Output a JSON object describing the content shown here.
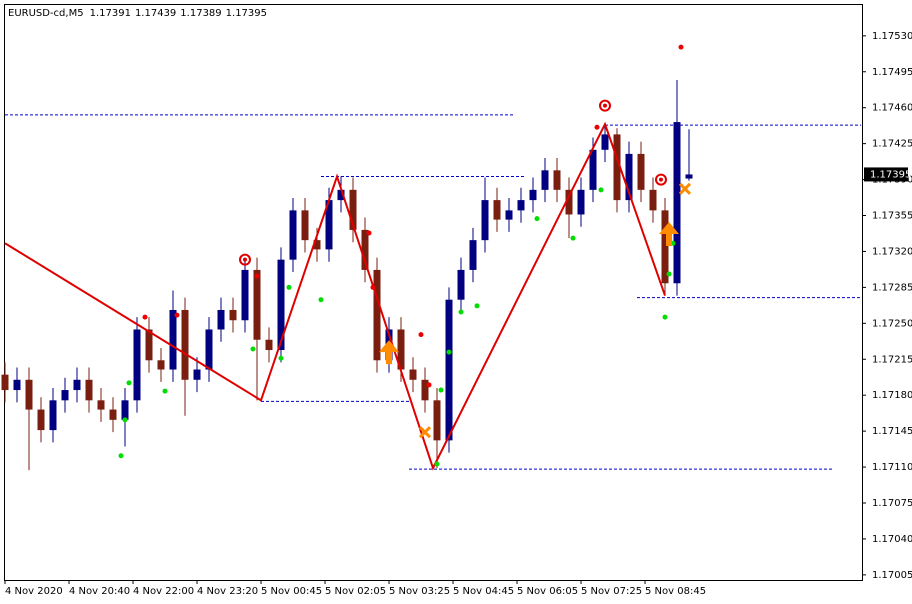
{
  "chart_data": {
    "type": "candlestick",
    "symbol": "EURUSD-cd,M5",
    "x": [
      0,
      3,
      6,
      9,
      12,
      15,
      18,
      21,
      24,
      27,
      30,
      33,
      36,
      39,
      42,
      45,
      48,
      51,
      54,
      57,
      60,
      63,
      66,
      69,
      72,
      75,
      78,
      81,
      84,
      87,
      90,
      93,
      96,
      99,
      102,
      105,
      108,
      111,
      114,
      117,
      120,
      123,
      126,
      129,
      132,
      135,
      138,
      141,
      144,
      147,
      150,
      153,
      156,
      159,
      162,
      165,
      168,
      171
    ],
    "candles": [
      [
        1.172,
        1.17212,
        1.17173,
        1.17185
      ],
      [
        1.17185,
        1.17207,
        1.17173,
        1.17195
      ],
      [
        1.17195,
        1.17207,
        1.17107,
        1.17166
      ],
      [
        1.17166,
        1.17178,
        1.17134,
        1.17146
      ],
      [
        1.17146,
        1.17187,
        1.17134,
        1.17175
      ],
      [
        1.17175,
        1.17197,
        1.17163,
        1.17185
      ],
      [
        1.17185,
        1.17207,
        1.17173,
        1.17195
      ],
      [
        1.17195,
        1.17207,
        1.17163,
        1.17175
      ],
      [
        1.17175,
        1.17187,
        1.17154,
        1.17166
      ],
      [
        1.17166,
        1.17178,
        1.17144,
        1.17156
      ],
      [
        1.17156,
        1.17187,
        1.1713,
        1.17175
      ],
      [
        1.17175,
        1.17256,
        1.17163,
        1.17244
      ],
      [
        1.17244,
        1.17256,
        1.17202,
        1.17214
      ],
      [
        1.17214,
        1.17226,
        1.17193,
        1.17205
      ],
      [
        1.17205,
        1.17282,
        1.17193,
        1.17263
      ],
      [
        1.17263,
        1.17275,
        1.1716,
        1.17195
      ],
      [
        1.17195,
        1.17217,
        1.17183,
        1.17205
      ],
      [
        1.17205,
        1.17256,
        1.17193,
        1.17244
      ],
      [
        1.17244,
        1.17275,
        1.17232,
        1.17263
      ],
      [
        1.17263,
        1.17275,
        1.17241,
        1.17253
      ],
      [
        1.17253,
        1.17314,
        1.17241,
        1.17302
      ],
      [
        1.17302,
        1.17314,
        1.17175,
        1.17234
      ],
      [
        1.17234,
        1.17246,
        1.17212,
        1.17224
      ],
      [
        1.17224,
        1.17324,
        1.17212,
        1.17312
      ],
      [
        1.17312,
        1.17372,
        1.173,
        1.1736
      ],
      [
        1.1736,
        1.17372,
        1.17319,
        1.17331
      ],
      [
        1.17331,
        1.17343,
        1.1731,
        1.17322
      ],
      [
        1.17322,
        1.17382,
        1.1731,
        1.1737
      ],
      [
        1.1737,
        1.17393,
        1.17358,
        1.1738
      ],
      [
        1.1738,
        1.17392,
        1.17329,
        1.17341
      ],
      [
        1.17341,
        1.17353,
        1.1729,
        1.17302
      ],
      [
        1.17302,
        1.17314,
        1.17202,
        1.17214
      ],
      [
        1.17214,
        1.17256,
        1.17202,
        1.17244
      ],
      [
        1.17244,
        1.17256,
        1.17193,
        1.17205
      ],
      [
        1.17205,
        1.17217,
        1.17183,
        1.17195
      ],
      [
        1.17195,
        1.17207,
        1.17163,
        1.17175
      ],
      [
        1.17175,
        1.17187,
        1.17109,
        1.17136
      ],
      [
        1.17136,
        1.17285,
        1.17124,
        1.17273
      ],
      [
        1.17273,
        1.17314,
        1.17261,
        1.17302
      ],
      [
        1.17302,
        1.17343,
        1.1729,
        1.17331
      ],
      [
        1.17331,
        1.17392,
        1.17319,
        1.1737
      ],
      [
        1.1737,
        1.17382,
        1.17339,
        1.17351
      ],
      [
        1.17351,
        1.17372,
        1.17339,
        1.1736
      ],
      [
        1.1736,
        1.17382,
        1.17348,
        1.1737
      ],
      [
        1.1737,
        1.17392,
        1.17358,
        1.1738
      ],
      [
        1.1738,
        1.17411,
        1.17368,
        1.17399
      ],
      [
        1.17399,
        1.17411,
        1.17368,
        1.1738
      ],
      [
        1.1738,
        1.17392,
        1.17333,
        1.17356
      ],
      [
        1.17356,
        1.17392,
        1.17344,
        1.1738
      ],
      [
        1.1738,
        1.17431,
        1.17368,
        1.17419
      ],
      [
        1.17419,
        1.17444,
        1.17407,
        1.17434
      ],
      [
        1.17434,
        1.1744,
        1.17358,
        1.1737
      ],
      [
        1.1737,
        1.17427,
        1.17358,
        1.17415
      ],
      [
        1.17415,
        1.17427,
        1.17368,
        1.1738
      ],
      [
        1.1738,
        1.17392,
        1.17348,
        1.1736
      ],
      [
        1.1736,
        1.17372,
        1.17277,
        1.17289
      ],
      [
        1.17289,
        1.17487,
        1.17277,
        1.17446
      ],
      [
        1.17391,
        1.17439,
        1.17389,
        1.17395
      ]
    ],
    "colors": {
      "up": "#000080",
      "down": "#7a1f10"
    },
    "xlim": [
      -0.25,
      214.25
    ],
    "xticks": [
      {
        "value": 0,
        "label": "4 Nov 2020"
      },
      {
        "value": 16,
        "label": "4 Nov 20:40"
      },
      {
        "value": 32,
        "label": "4 Nov 22:00"
      },
      {
        "value": 48,
        "label": "4 Nov 23:20"
      },
      {
        "value": 64,
        "label": "5 Nov 00:45"
      },
      {
        "value": 80,
        "label": "5 Nov 02:05"
      },
      {
        "value": 96,
        "label": "5 Nov 03:25"
      },
      {
        "value": 112,
        "label": "5 Nov 04:45"
      },
      {
        "value": 128,
        "label": "5 Nov 06:05"
      },
      {
        "value": 144,
        "label": "5 Nov 07:25"
      },
      {
        "value": 160,
        "label": "5 Nov 08:45"
      }
    ],
    "ylim": [
      1.17,
      1.17561
    ],
    "yticks": [
      {
        "value": 1.1753,
        "label": "1.17530"
      },
      1.17495,
      {
        "value": 1.1746,
        "label": "1.17460"
      },
      1.17425,
      {
        "value": 1.1739,
        "label": "1.17390"
      },
      1.17355,
      {
        "value": 1.1732,
        "label": "1.17320"
      },
      1.17285,
      {
        "value": 1.1725,
        "label": "1.17250"
      },
      1.17215,
      {
        "value": 1.1718,
        "label": "1.17180"
      },
      1.17145,
      {
        "value": 1.1711,
        "label": "1.17110"
      },
      1.17075,
      {
        "value": 1.1704,
        "label": "1.17040"
      },
      1.17005
    ],
    "zigzag": {
      "color": "#e00000",
      "x": [
        0,
        64,
        83,
        107,
        150,
        165
      ],
      "values": [
        1.17328,
        1.17175,
        1.17393,
        1.17109,
        1.17444,
        1.17277
      ]
    },
    "levels": {
      "color": "#0000c8",
      "items": [
        {
          "value": 1.17453,
          "x": [
            0,
            127
          ]
        },
        {
          "value": 1.17393,
          "x": [
            79,
            130
          ]
        },
        {
          "value": 1.17174,
          "x": [
            64,
            101
          ]
        },
        {
          "value": 1.17108,
          "x": [
            101,
            207
          ]
        },
        {
          "value": 1.17443,
          "x": [
            150,
            214
          ]
        },
        {
          "value": 1.17275,
          "x": [
            158,
            214
          ]
        }
      ]
    },
    "sell_dots": {
      "color": "#ee0000",
      "x": [
        35,
        43,
        63,
        91,
        92,
        104,
        106,
        148,
        169
      ],
      "values": [
        1.17256,
        1.17258,
        1.17296,
        1.17338,
        1.17285,
        1.17239,
        1.1719,
        1.17441,
        1.17519
      ]
    },
    "buy_dots": {
      "color": "#00dd00",
      "x": [
        29,
        30,
        31,
        40,
        62,
        69,
        71,
        79,
        108,
        109,
        111,
        114,
        118,
        133,
        142,
        149,
        165,
        166,
        167
      ],
      "values": [
        1.17121,
        1.17156,
        1.17192,
        1.17184,
        1.17225,
        1.17216,
        1.17285,
        1.17273,
        1.17113,
        1.17185,
        1.17222,
        1.17261,
        1.17267,
        1.17352,
        1.17333,
        1.1738,
        1.17256,
        1.17298,
        1.17328
      ]
    },
    "circles": {
      "color": "#e00000",
      "x": [
        60,
        150,
        164
      ],
      "values": [
        1.17312,
        1.17462,
        1.1739
      ]
    },
    "arrows": {
      "color": "#ff8c00",
      "x": [
        96,
        166
      ],
      "values": [
        1.17222,
        1.17337
      ]
    },
    "crosses": {
      "color": "#ff8c00",
      "x": [
        105,
        170
      ],
      "values": [
        1.17144,
        1.17381
      ]
    }
  }
}
